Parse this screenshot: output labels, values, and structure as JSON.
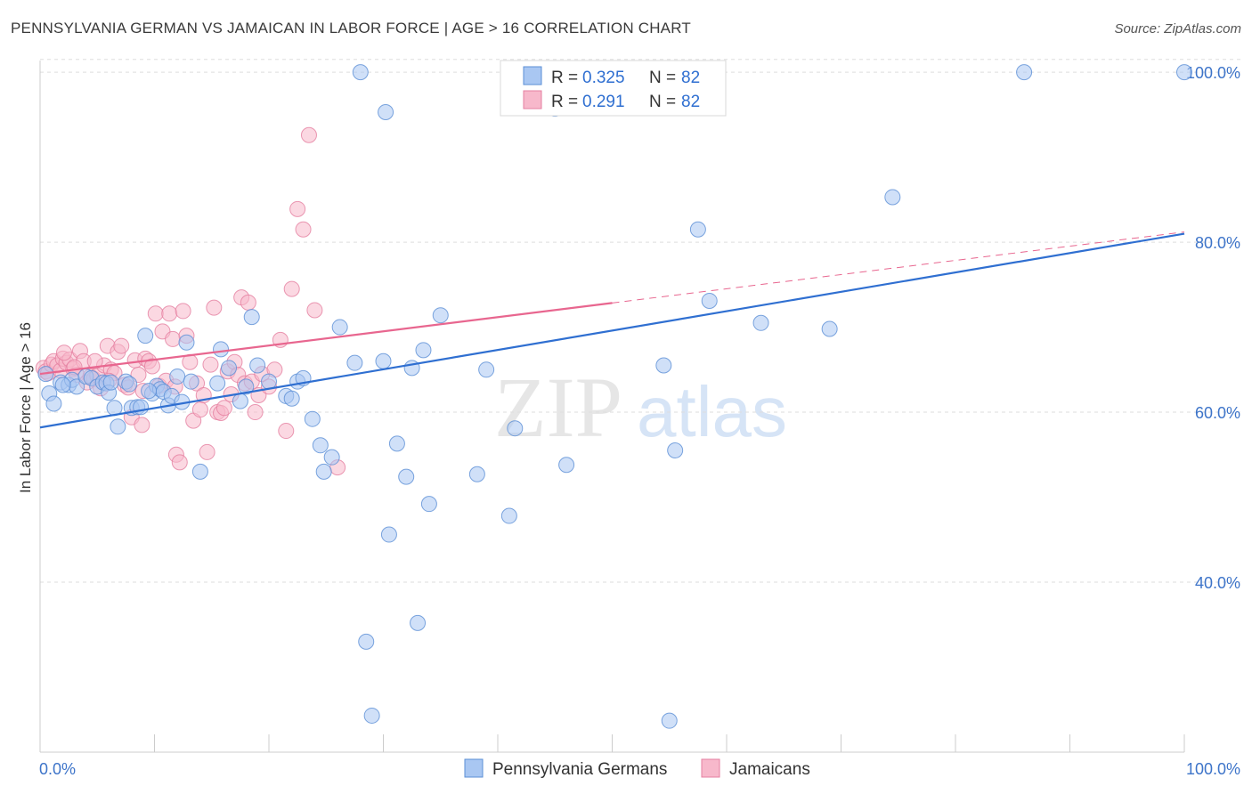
{
  "title": "PENNSYLVANIA GERMAN VS JAMAICAN IN LABOR FORCE | AGE > 16 CORRELATION CHART",
  "source": "Source: ZipAtlas.com",
  "watermark": {
    "zip": "ZIP",
    "atlas": "atlas"
  },
  "legend": {
    "rows": [
      {
        "r_label": "R =",
        "r_value": "0.325",
        "n_label": "N =",
        "n_value": "82"
      },
      {
        "r_label": "R =",
        "r_value": "0.291",
        "n_label": "N =",
        "n_value": "82"
      }
    ]
  },
  "colors": {
    "blue_fill": "#a9c7f2",
    "blue_stroke": "#5b8fd6",
    "blue_line": "#2f6fd1",
    "pink_fill": "#f7b8cb",
    "pink_stroke": "#e57fa0",
    "pink_line": "#e8668f",
    "grid": "#dddddd",
    "tick_text": "#3d74c9"
  },
  "chart_data": {
    "type": "scatter",
    "xlabel": "",
    "ylabel": "In Labor Force | Age > 16",
    "xlim": [
      0,
      100
    ],
    "ylim": [
      20,
      102
    ],
    "x_tick_labels": [
      "0.0%",
      "100.0%"
    ],
    "y_ticks": [
      40,
      60,
      80,
      100
    ],
    "y_tick_labels": [
      "40.0%",
      "60.0%",
      "80.0%",
      "100.0%"
    ],
    "grid": true,
    "legend_position": "top-center",
    "series": [
      {
        "name": "Pennsylvania Germans",
        "color": "#a9c7f2",
        "trend": {
          "x": [
            0,
            100
          ],
          "y": [
            58.2,
            81.0
          ],
          "dashed_from": null
        },
        "points": [
          [
            0.5,
            64.5
          ],
          [
            0.8,
            62.2
          ],
          [
            1.2,
            61.0
          ],
          [
            1.8,
            63.5
          ],
          [
            2.5,
            63.2
          ],
          [
            2.8,
            63.8
          ],
          [
            3.2,
            63.0
          ],
          [
            4.0,
            64.2
          ],
          [
            4.5,
            64.0
          ],
          [
            5.0,
            63.0
          ],
          [
            5.5,
            63.5
          ],
          [
            5.8,
            63.4
          ],
          [
            6.0,
            62.3
          ],
          [
            6.2,
            63.5
          ],
          [
            6.5,
            60.5
          ],
          [
            6.8,
            58.3
          ],
          [
            7.5,
            63.6
          ],
          [
            7.8,
            63.3
          ],
          [
            8.0,
            60.5
          ],
          [
            8.5,
            60.6
          ],
          [
            8.8,
            60.6
          ],
          [
            9.2,
            69.0
          ],
          [
            9.8,
            62.2
          ],
          [
            10.2,
            63.1
          ],
          [
            10.5,
            62.7
          ],
          [
            10.8,
            62.4
          ],
          [
            11.2,
            60.8
          ],
          [
            11.5,
            61.9
          ],
          [
            12.0,
            64.2
          ],
          [
            12.4,
            61.2
          ],
          [
            12.8,
            68.2
          ],
          [
            13.2,
            63.6
          ],
          [
            14.0,
            53.0
          ],
          [
            15.5,
            63.4
          ],
          [
            15.8,
            67.4
          ],
          [
            16.5,
            65.2
          ],
          [
            17.5,
            61.3
          ],
          [
            18.0,
            63.0
          ],
          [
            19.0,
            65.5
          ],
          [
            21.5,
            61.9
          ],
          [
            22.0,
            61.6
          ],
          [
            22.5,
            63.6
          ],
          [
            23.0,
            64.0
          ],
          [
            23.8,
            59.2
          ],
          [
            24.5,
            56.1
          ],
          [
            24.8,
            53.0
          ],
          [
            25.5,
            54.7
          ],
          [
            26.2,
            70.0
          ],
          [
            27.5,
            65.8
          ],
          [
            28.0,
            100.0
          ],
          [
            28.5,
            33.0
          ],
          [
            29.0,
            24.3
          ],
          [
            30.0,
            66.0
          ],
          [
            30.2,
            95.3
          ],
          [
            30.5,
            45.6
          ],
          [
            31.2,
            56.3
          ],
          [
            32.0,
            52.4
          ],
          [
            32.5,
            65.2
          ],
          [
            33.0,
            35.2
          ],
          [
            33.5,
            67.3
          ],
          [
            34.0,
            49.2
          ],
          [
            35.0,
            71.4
          ],
          [
            38.2,
            52.7
          ],
          [
            39.0,
            65.0
          ],
          [
            41.0,
            47.8
          ],
          [
            41.5,
            58.1
          ],
          [
            45.0,
            95.7
          ],
          [
            46.0,
            53.8
          ],
          [
            54.5,
            65.5
          ],
          [
            55.0,
            23.7
          ],
          [
            55.5,
            55.5
          ],
          [
            57.5,
            81.5
          ],
          [
            58.5,
            73.1
          ],
          [
            63.0,
            70.5
          ],
          [
            69.0,
            69.8
          ],
          [
            74.5,
            85.3
          ],
          [
            86.0,
            100.0
          ],
          [
            100.0,
            100.0
          ],
          [
            2.0,
            63.2
          ],
          [
            18.5,
            71.2
          ],
          [
            20.0,
            63.6
          ],
          [
            9.5,
            62.5
          ]
        ]
      },
      {
        "name": "Jamaicans",
        "color": "#f7b8cb",
        "trend": {
          "x": [
            0,
            100
          ],
          "y": [
            64.5,
            81.2
          ],
          "dashed_from": 50
        },
        "points": [
          [
            0.3,
            65.2
          ],
          [
            0.5,
            64.8
          ],
          [
            0.7,
            64.6
          ],
          [
            1.0,
            65.6
          ],
          [
            1.2,
            66.0
          ],
          [
            1.5,
            65.5
          ],
          [
            1.8,
            64.9
          ],
          [
            2.0,
            66.3
          ],
          [
            2.3,
            65.8
          ],
          [
            2.6,
            66.2
          ],
          [
            2.9,
            65.1
          ],
          [
            3.2,
            64.4
          ],
          [
            3.5,
            67.2
          ],
          [
            3.8,
            66.0
          ],
          [
            4.1,
            63.5
          ],
          [
            4.4,
            64.2
          ],
          [
            4.7,
            63.9
          ],
          [
            5.0,
            64.3
          ],
          [
            5.3,
            62.8
          ],
          [
            5.6,
            65.5
          ],
          [
            5.9,
            67.8
          ],
          [
            6.2,
            65.0
          ],
          [
            6.5,
            64.6
          ],
          [
            6.8,
            67.1
          ],
          [
            7.1,
            67.8
          ],
          [
            7.4,
            63.2
          ],
          [
            7.7,
            62.9
          ],
          [
            8.0,
            59.4
          ],
          [
            8.3,
            66.1
          ],
          [
            8.6,
            64.4
          ],
          [
            8.9,
            58.5
          ],
          [
            9.2,
            66.3
          ],
          [
            9.5,
            66.0
          ],
          [
            9.8,
            65.4
          ],
          [
            10.1,
            71.6
          ],
          [
            10.4,
            63.1
          ],
          [
            10.7,
            69.5
          ],
          [
            11.0,
            63.7
          ],
          [
            11.3,
            71.6
          ],
          [
            11.6,
            68.6
          ],
          [
            11.9,
            55.0
          ],
          [
            12.2,
            54.1
          ],
          [
            12.5,
            71.9
          ],
          [
            12.8,
            69.0
          ],
          [
            13.1,
            65.9
          ],
          [
            13.4,
            59.0
          ],
          [
            13.7,
            63.4
          ],
          [
            14.0,
            60.3
          ],
          [
            14.3,
            62.0
          ],
          [
            14.6,
            55.3
          ],
          [
            14.9,
            65.6
          ],
          [
            15.2,
            72.3
          ],
          [
            15.5,
            60.0
          ],
          [
            15.8,
            59.9
          ],
          [
            16.1,
            60.5
          ],
          [
            16.4,
            64.8
          ],
          [
            16.7,
            62.1
          ],
          [
            17.0,
            65.9
          ],
          [
            17.3,
            64.4
          ],
          [
            17.6,
            73.5
          ],
          [
            17.9,
            63.4
          ],
          [
            18.2,
            72.9
          ],
          [
            18.5,
            63.6
          ],
          [
            18.8,
            60.0
          ],
          [
            19.1,
            62.0
          ],
          [
            19.4,
            64.5
          ],
          [
            20.0,
            63.0
          ],
          [
            20.5,
            65.0
          ],
          [
            21.0,
            68.5
          ],
          [
            21.5,
            57.8
          ],
          [
            22.0,
            74.5
          ],
          [
            22.5,
            83.9
          ],
          [
            23.0,
            81.5
          ],
          [
            23.5,
            92.6
          ],
          [
            24.0,
            72.0
          ],
          [
            26.0,
            53.5
          ],
          [
            2.1,
            67.0
          ],
          [
            3.0,
            65.3
          ],
          [
            4.8,
            66.0
          ],
          [
            6.0,
            63.7
          ],
          [
            9.0,
            62.5
          ],
          [
            11.8,
            63.0
          ]
        ]
      }
    ]
  },
  "bottom_legend": [
    "Pennsylvania Germans",
    "Jamaicans"
  ]
}
